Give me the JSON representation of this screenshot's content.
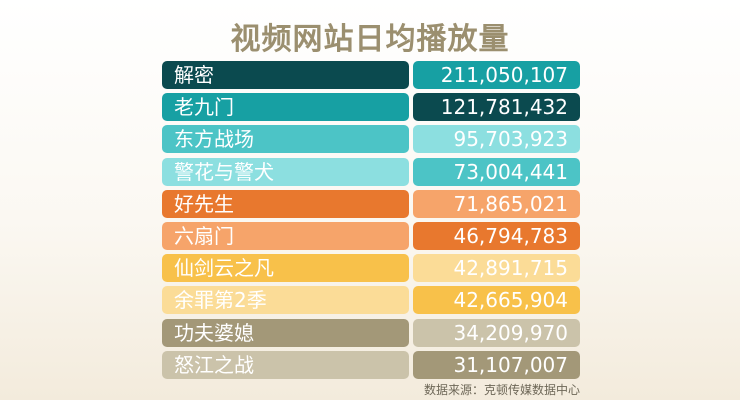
{
  "chart_data": {
    "type": "table",
    "title": "视频网站日均播放量",
    "rows": [
      {
        "name": "解密",
        "value": "211,050,107",
        "name_color": "#0b4a4f",
        "value_color": "#17a0a3"
      },
      {
        "name": "老九门",
        "value": "121,781,432",
        "name_color": "#17a0a3",
        "value_color": "#0b4a4f"
      },
      {
        "name": "东方战场",
        "value": "95,703,923",
        "name_color": "#4cc4c6",
        "value_color": "#8cdfe0"
      },
      {
        "name": "警花与警犬",
        "value": "73,004,441",
        "name_color": "#8cdfe0",
        "value_color": "#4cc4c6"
      },
      {
        "name": "好先生",
        "value": "71,865,021",
        "name_color": "#e8782e",
        "value_color": "#f6a46a"
      },
      {
        "name": "六扇门",
        "value": "46,794,783",
        "name_color": "#f6a46a",
        "value_color": "#e8782e"
      },
      {
        "name": "仙剑云之凡",
        "value": "42,891,715",
        "name_color": "#f8c14a",
        "value_color": "#fbdc97"
      },
      {
        "name": "余罪第2季",
        "value": "42,665,904",
        "name_color": "#fbdc97",
        "value_color": "#f8c14a"
      },
      {
        "name": "功夫婆媳",
        "value": "34,209,970",
        "name_color": "#a39878",
        "value_color": "#cbc3aa"
      },
      {
        "name": "怒江之战",
        "value": "31,107,007",
        "name_color": "#cbc3aa",
        "value_color": "#a39878"
      }
    ],
    "source": "数据来源：克顿传媒数据中心"
  }
}
